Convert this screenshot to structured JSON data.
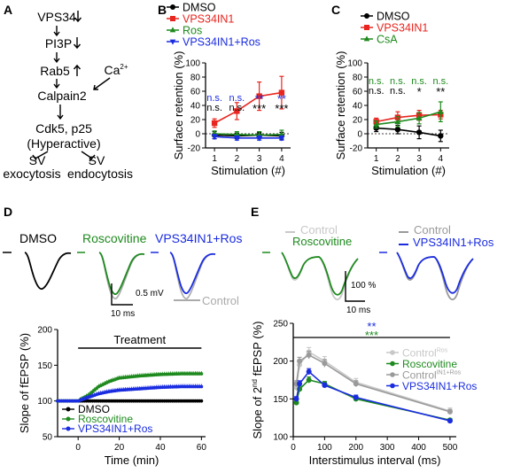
{
  "panels": {
    "A": {
      "label": "A",
      "nodes": [
        "VPS34",
        "PI3P",
        "Rab5",
        "Ca",
        "Calpain2",
        "Cdk5, p25",
        "(Hyperactive)",
        "SV",
        "exocytosis",
        "SV",
        "endocytosis"
      ],
      "ca_superscript": "2+",
      "arrows_down": [
        "↓",
        "↓",
        "↑"
      ]
    },
    "B": {
      "label": "B"
    },
    "C": {
      "label": "C"
    },
    "D": {
      "label": "D",
      "traces": [
        "DMSO",
        "Roscovitine",
        "VPS34IN1+Ros"
      ],
      "control_label": "Control",
      "scale_y": "0.5 mV",
      "scale_x": "10 ms",
      "treatment": "Treatment"
    },
    "E": {
      "label": "E",
      "trace_labels": [
        "Control",
        "Roscovitine",
        "Control",
        "VPS34IN1+Ros"
      ],
      "scale_y": "100 %",
      "scale_x": "10 ms",
      "sig_top": "**",
      "sig_bottom": "***"
    }
  },
  "colors": {
    "black": "#000000",
    "red": "#e8251e",
    "green": "#1e8a1e",
    "blue": "#1a2ce0",
    "gray": "#9a9a9a",
    "lightgray": "#c8c8c8"
  },
  "chart_data": [
    {
      "id": "B",
      "type": "line",
      "ylabel": "Surface retention (%)",
      "xlabel": "Stimulation (#)",
      "x": [
        1,
        2,
        3,
        4
      ],
      "yticks": [
        -20,
        0,
        20,
        40,
        60,
        80,
        100
      ],
      "xlim": [
        0.6,
        4.4
      ],
      "ylim": [
        -20,
        100
      ],
      "legend": [
        "DMSO",
        "VPS34IN1",
        "Ros",
        "VPS34IN1+Ros"
      ],
      "series": [
        {
          "name": "DMSO",
          "color": "#000000",
          "marker": "circle",
          "values": [
            -2,
            -3,
            -2,
            -3
          ],
          "err": [
            5,
            4,
            4,
            5
          ]
        },
        {
          "name": "VPS34IN1",
          "color": "#e8251e",
          "marker": "square",
          "values": [
            15,
            32,
            53,
            58
          ],
          "err": [
            6,
            12,
            20,
            23
          ]
        },
        {
          "name": "Ros",
          "color": "#1e8a1e",
          "marker": "triangle",
          "values": [
            0,
            -1,
            -2,
            -1
          ],
          "err": [
            4,
            4,
            5,
            6
          ]
        },
        {
          "name": "VPS34IN1+Ros",
          "color": "#1a2ce0",
          "marker": "triangle-down",
          "values": [
            -4,
            -6,
            -6,
            -6
          ],
          "err": [
            3,
            3,
            3,
            3
          ]
        }
      ],
      "annotations": [
        {
          "x": 1,
          "lines": [
            {
              "text": "n.s.",
              "color": "#1a2ce0"
            },
            {
              "text": "n.s.",
              "color": "#000000"
            }
          ]
        },
        {
          "x": 2,
          "lines": [
            {
              "text": "n.s.",
              "color": "#1a2ce0"
            },
            {
              "text": "n.s.",
              "color": "#000000"
            }
          ]
        },
        {
          "x": 3,
          "lines": [
            {
              "text": "**",
              "color": "#1a2ce0"
            },
            {
              "text": "***",
              "color": "#000000"
            }
          ]
        },
        {
          "x": 4,
          "lines": [
            {
              "text": "**",
              "color": "#1a2ce0"
            },
            {
              "text": "***",
              "color": "#000000"
            }
          ]
        }
      ]
    },
    {
      "id": "C",
      "type": "line",
      "ylabel": "Surface retention (%)",
      "xlabel": "Stimulation (#)",
      "x": [
        1,
        2,
        3,
        4
      ],
      "yticks": [
        -20,
        0,
        20,
        40,
        60,
        80,
        100
      ],
      "xlim": [
        0.6,
        4.4
      ],
      "ylim": [
        -20,
        100
      ],
      "legend": [
        "DMSO",
        "VPS34IN1",
        "CsA"
      ],
      "series": [
        {
          "name": "DMSO",
          "color": "#000000",
          "marker": "circle",
          "values": [
            8,
            6,
            2,
            -3
          ],
          "err": [
            5,
            6,
            9,
            8
          ]
        },
        {
          "name": "VPS34IN1",
          "color": "#e8251e",
          "marker": "square",
          "values": [
            17,
            23,
            26,
            27
          ],
          "err": [
            5,
            8,
            7,
            6
          ]
        },
        {
          "name": "CsA",
          "color": "#1e8a1e",
          "marker": "triangle",
          "values": [
            13,
            17,
            22,
            31
          ],
          "err": [
            5,
            7,
            8,
            14
          ]
        }
      ],
      "annotations": [
        {
          "x": 1,
          "lines": [
            {
              "text": "n.s.",
              "color": "#1e8a1e"
            },
            {
              "text": "n.s.",
              "color": "#000000"
            }
          ]
        },
        {
          "x": 2,
          "lines": [
            {
              "text": "n.s.",
              "color": "#1e8a1e"
            },
            {
              "text": "n.s.",
              "color": "#000000"
            }
          ]
        },
        {
          "x": 3,
          "lines": [
            {
              "text": "n.s.",
              "color": "#1e8a1e"
            },
            {
              "text": "*",
              "color": "#000000"
            }
          ]
        },
        {
          "x": 4,
          "lines": [
            {
              "text": "n.s.",
              "color": "#1e8a1e"
            },
            {
              "text": "**",
              "color": "#000000"
            }
          ]
        }
      ]
    },
    {
      "id": "D",
      "type": "scatter",
      "ylabel": "Slope of fEPSP (%)",
      "xlabel": "Time (min)",
      "xticks": [
        0,
        20,
        40,
        60
      ],
      "yticks": [
        50,
        100,
        150,
        200
      ],
      "xlim": [
        -10,
        62
      ],
      "ylim": [
        50,
        200
      ],
      "legend": [
        "DMSO",
        "Roscovitine",
        "VPS34IN1+Ros"
      ],
      "treatment_range": [
        0,
        60
      ],
      "series": [
        {
          "name": "DMSO",
          "color": "#000000",
          "t": [
            -10,
            0,
            5,
            10,
            20,
            30,
            40,
            50,
            60
          ],
          "values": [
            100,
            100,
            100,
            100,
            100,
            100,
            100,
            100,
            100
          ]
        },
        {
          "name": "Roscovitine",
          "color": "#1e8a1e",
          "t": [
            -10,
            0,
            5,
            10,
            15,
            20,
            30,
            40,
            50,
            60
          ],
          "values": [
            100,
            100,
            108,
            120,
            127,
            132,
            135,
            137,
            138,
            138
          ]
        },
        {
          "name": "VPS34IN1+Ros",
          "color": "#1a2ce0",
          "t": [
            -10,
            0,
            5,
            10,
            15,
            20,
            30,
            40,
            50,
            60
          ],
          "values": [
            100,
            100,
            105,
            110,
            113,
            115,
            117,
            119,
            120,
            120
          ]
        }
      ]
    },
    {
      "id": "E",
      "type": "line",
      "ylabel_prefix": "Slope of 2",
      "ylabel_sup": "nd",
      "ylabel_suffix": " fEPSP (%)",
      "xlabel": "Interstimulus interval (ms)",
      "xticks": [
        0,
        100,
        200,
        300,
        400,
        500
      ],
      "yticks": [
        100,
        150,
        200,
        250
      ],
      "xlim": [
        0,
        520
      ],
      "ylim": [
        100,
        250
      ],
      "x": [
        10,
        20,
        50,
        100,
        200,
        500
      ],
      "legend": [
        "Control",
        "Roscovitine",
        "Control",
        "VPS34IN1+Ros"
      ],
      "legend_sups": [
        "Ros",
        "",
        "IN1+Ros",
        ""
      ],
      "series": [
        {
          "name": "Control",
          "color": "#c8c8c8",
          "values": [
            165,
            195,
            212,
            200,
            172,
            134
          ],
          "err": [
            4,
            6,
            6,
            6,
            5,
            4
          ]
        },
        {
          "name": "Roscovitine",
          "color": "#1e8a1e",
          "values": [
            145,
            163,
            175,
            170,
            150,
            122
          ],
          "err": [
            3,
            4,
            4,
            3,
            3,
            2
          ]
        },
        {
          "name": "Control",
          "color": "#9a9a9a",
          "values": [
            170,
            200,
            208,
            197,
            170,
            133
          ],
          "err": [
            4,
            5,
            5,
            5,
            4,
            3
          ]
        },
        {
          "name": "VPS34IN1+Ros",
          "color": "#1a2ce0",
          "values": [
            150,
            170,
            186,
            168,
            152,
            121
          ],
          "err": [
            3,
            4,
            4,
            3,
            3,
            2
          ]
        }
      ]
    }
  ]
}
